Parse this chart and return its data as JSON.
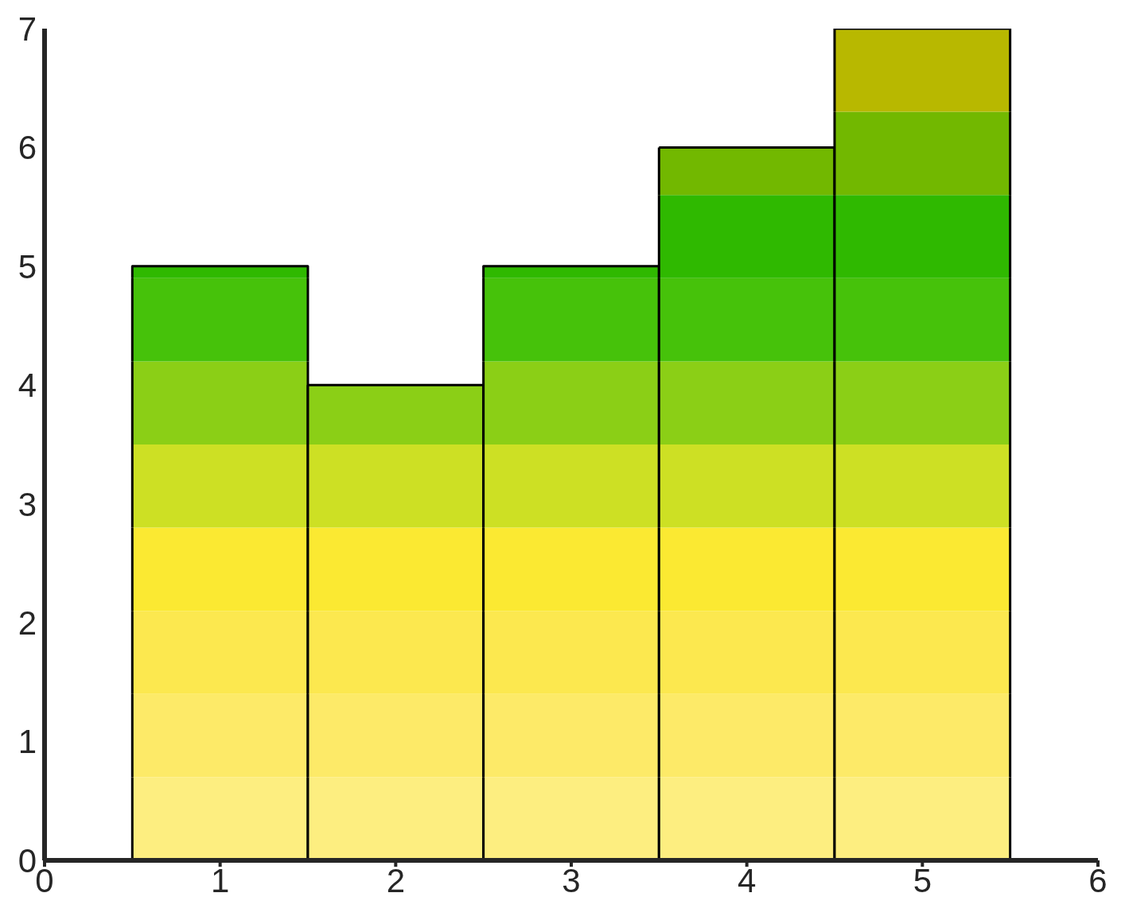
{
  "chart_data": {
    "type": "bar",
    "stacked": true,
    "x": [
      1,
      2,
      3,
      4,
      5
    ],
    "series": [
      {
        "color": "#fdee80",
        "values": [
          0.7,
          0.7,
          0.7,
          0.7,
          0.7
        ]
      },
      {
        "color": "#fdea68",
        "values": [
          0.7,
          0.7,
          0.7,
          0.7,
          0.7
        ]
      },
      {
        "color": "#fce84f",
        "values": [
          0.7,
          0.7,
          0.7,
          0.7,
          0.7
        ]
      },
      {
        "color": "#fbe932",
        "values": [
          0.7,
          0.7,
          0.7,
          0.7,
          0.7
        ]
      },
      {
        "color": "#cde024",
        "values": [
          0.7,
          0.7,
          0.7,
          0.7,
          0.7
        ]
      },
      {
        "color": "#8bcf16",
        "values": [
          0.7,
          0.5,
          0.7,
          0.7,
          0.7
        ]
      },
      {
        "color": "#46c20a",
        "values": [
          0.7,
          null,
          0.7,
          0.7,
          0.7
        ]
      },
      {
        "color": "#2fb900",
        "values": [
          0.1,
          null,
          0.1,
          0.7,
          0.7
        ]
      },
      {
        "color": "#72b800",
        "values": [
          null,
          null,
          null,
          0.4,
          0.7
        ]
      },
      {
        "color": "#b8b800",
        "values": [
          null,
          null,
          null,
          null,
          0.7
        ]
      }
    ],
    "xlim": [
      0,
      6
    ],
    "xticks": [
      0,
      1,
      2,
      3,
      4,
      5,
      6
    ],
    "ylim": [
      0,
      7
    ],
    "yticks": [
      0,
      1,
      2,
      3,
      4,
      5,
      6,
      7
    ],
    "grid": false,
    "legend": false
  }
}
